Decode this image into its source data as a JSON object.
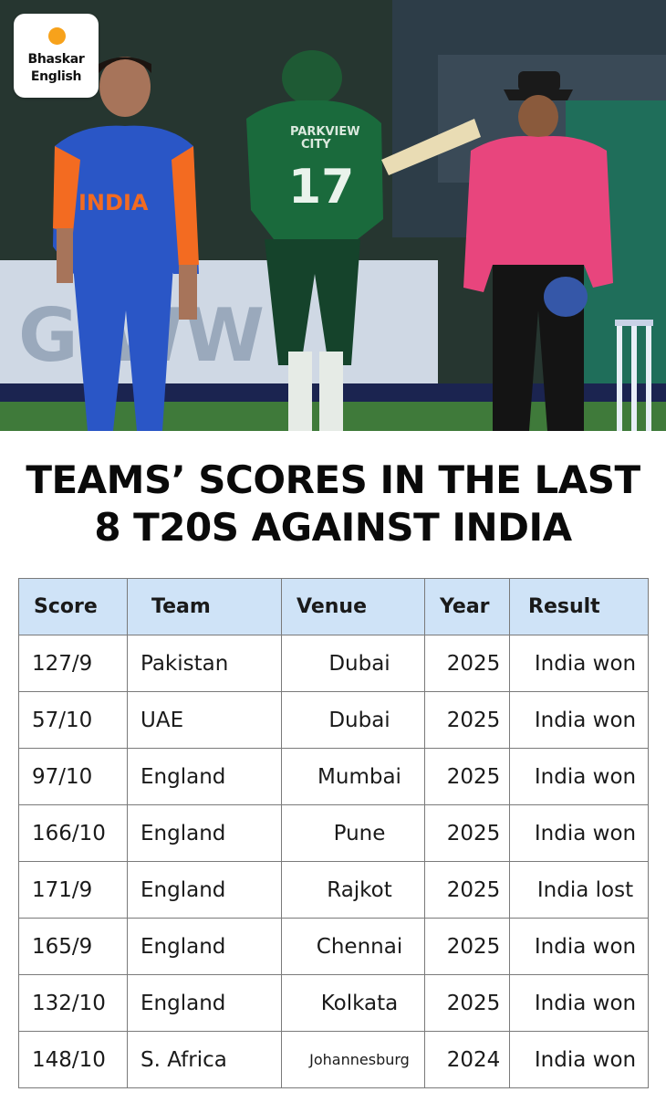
{
  "brand": {
    "line1": "Bhaskar",
    "line2": "English",
    "accent": "#f7a21b"
  },
  "photo": {
    "jersey_left_text": "INDIA",
    "jersey_middle_sponsor": "PARKVIEW CITY",
    "jersey_middle_number": "17"
  },
  "headline": {
    "line1": "TEAMS’ SCORES IN THE LAST",
    "line2": "8 T20S AGAINST INDIA"
  },
  "table": {
    "header_color": "#cfe3f7",
    "headers": {
      "score": "Score",
      "team": "Team",
      "venue": "Venue",
      "year": "Year",
      "result": "Result"
    },
    "rows": [
      {
        "score": "127/9",
        "team": "Pakistan",
        "venue": "Dubai",
        "year": "2025",
        "result": "India won"
      },
      {
        "score": "57/10",
        "team": "UAE",
        "venue": "Dubai",
        "year": "2025",
        "result": "India won"
      },
      {
        "score": "97/10",
        "team": "England",
        "venue": "Mumbai",
        "year": "2025",
        "result": "India won"
      },
      {
        "score": "166/10",
        "team": "England",
        "venue": "Pune",
        "year": "2025",
        "result": "India won"
      },
      {
        "score": "171/9",
        "team": "England",
        "venue": "Rajkot",
        "year": "2025",
        "result": "India lost"
      },
      {
        "score": "165/9",
        "team": "England",
        "venue": "Chennai",
        "year": "2025",
        "result": "India won"
      },
      {
        "score": "132/10",
        "team": "England",
        "venue": "Kolkata",
        "year": "2025",
        "result": "India won"
      },
      {
        "score": "148/10",
        "team": "S. Africa",
        "venue": "Johannesburg",
        "year": "2024",
        "result": "India won"
      }
    ]
  }
}
